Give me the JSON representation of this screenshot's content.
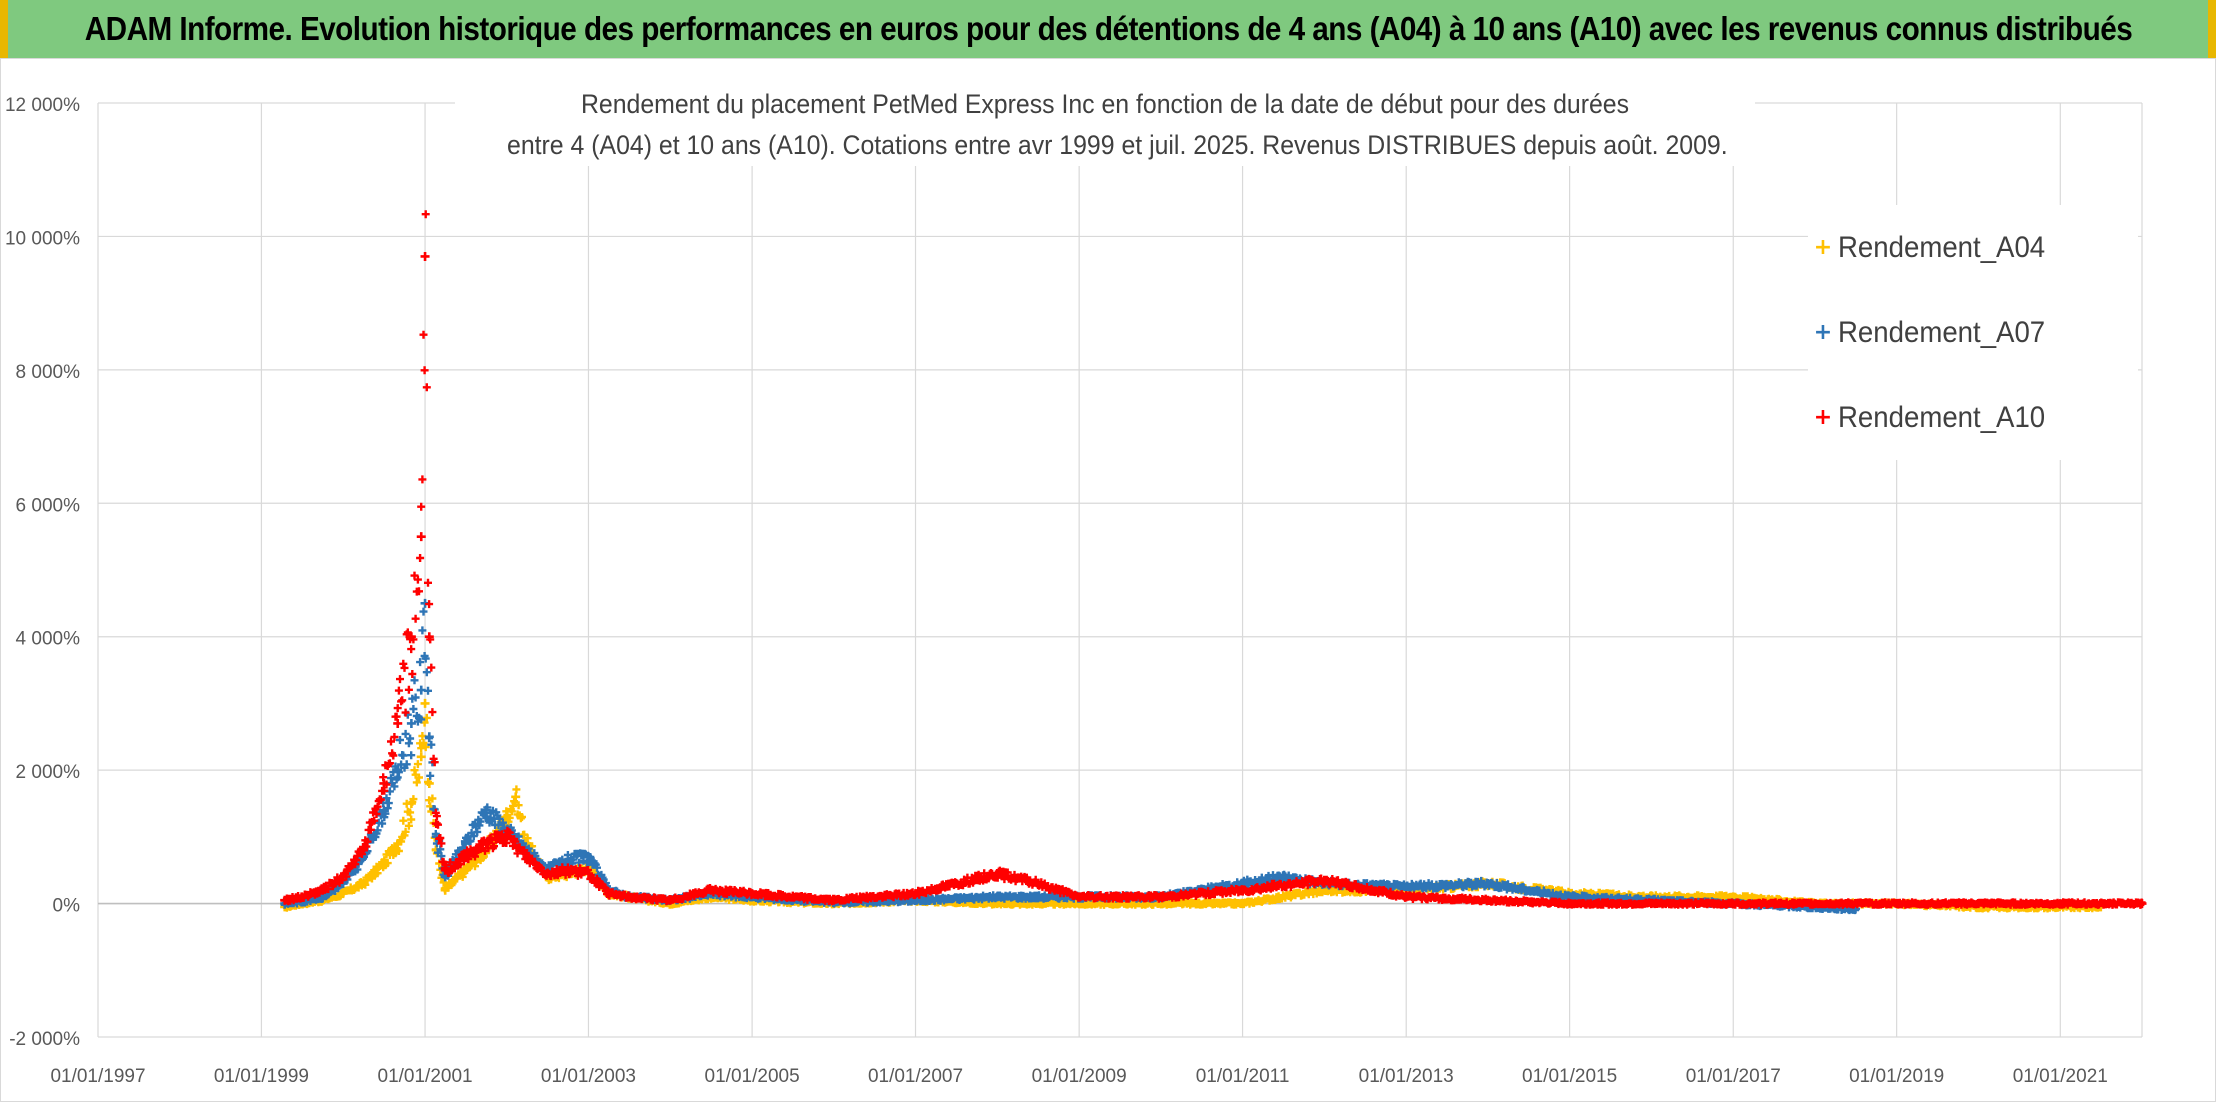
{
  "header": {
    "title": "ADAM Informe. Evolution historique des performances en euros pour des détentions de 4 ans (A04) à 10 ans (A10) avec les revenus connus distribués"
  },
  "colors": {
    "banner": "#7fc97f",
    "accent": "#e8b700",
    "A04": "#ffc000",
    "A07": "#2e75b6",
    "A10": "#ff0000",
    "grid": "#d9d9d9"
  },
  "chart_data": {
    "type": "scatter",
    "title_lines": [
      "Rendement du placement PetMed Express Inc en fonction de la date de début pour des durées",
      "entre 4 (A04) et 10 ans (A10). Cotations entre avr 1999 et juil. 2025. Revenus DISTRIBUES depuis août. 2009."
    ],
    "xlabel": "",
    "ylabel": "",
    "x_ticks": [
      "01/01/1997",
      "01/01/1999",
      "01/01/2001",
      "01/01/2003",
      "01/01/2005",
      "01/01/2007",
      "01/01/2009",
      "01/01/2011",
      "01/01/2013",
      "01/01/2015",
      "01/01/2017",
      "01/01/2019",
      "01/01/2021"
    ],
    "y_ticks": [
      "-2 000%",
      "0%",
      "2 000%",
      "4 000%",
      "6 000%",
      "8 000%",
      "10 000%",
      "12 000%"
    ],
    "xlim": [
      "1997-01-01",
      "2022-01-01"
    ],
    "ylim": [
      -2000,
      12000
    ],
    "grid": true,
    "legend_position": "right",
    "marker": "+",
    "series": [
      {
        "name": "Rendement_A04",
        "color": "#ffc000",
        "x_end": "2021-07-01",
        "points": [
          [
            "1999-04-15",
            -50
          ],
          [
            "1999-07-01",
            0
          ],
          [
            "1999-10-01",
            50
          ],
          [
            "2000-01-01",
            150
          ],
          [
            "2000-04-01",
            300
          ],
          [
            "2000-07-01",
            600
          ],
          [
            "2000-09-01",
            900
          ],
          [
            "2000-11-01",
            1500
          ],
          [
            "2000-12-15",
            2200
          ],
          [
            "2001-01-01",
            3000
          ],
          [
            "2001-01-20",
            1800
          ],
          [
            "2001-02-20",
            800
          ],
          [
            "2001-04-01",
            200
          ],
          [
            "2001-07-01",
            500
          ],
          [
            "2001-10-01",
            800
          ],
          [
            "2002-01-01",
            1300
          ],
          [
            "2002-02-10",
            1600
          ],
          [
            "2002-04-01",
            900
          ],
          [
            "2002-07-01",
            400
          ],
          [
            "2002-10-01",
            450
          ],
          [
            "2003-01-01",
            550
          ],
          [
            "2003-04-01",
            150
          ],
          [
            "2003-07-01",
            100
          ],
          [
            "2004-01-01",
            0
          ],
          [
            "2004-07-01",
            100
          ],
          [
            "2005-01-01",
            50
          ],
          [
            "2006-01-01",
            0
          ],
          [
            "2007-01-01",
            50
          ],
          [
            "2008-01-01",
            0
          ],
          [
            "2009-01-01",
            0
          ],
          [
            "2010-01-01",
            0
          ],
          [
            "2011-01-01",
            0
          ],
          [
            "2012-01-01",
            200
          ],
          [
            "2013-01-01",
            200
          ],
          [
            "2014-01-01",
            300
          ],
          [
            "2015-01-01",
            150
          ],
          [
            "2016-01-01",
            100
          ],
          [
            "2017-01-01",
            100
          ],
          [
            "2018-01-01",
            0
          ],
          [
            "2019-01-01",
            0
          ],
          [
            "2020-01-01",
            -50
          ],
          [
            "2021-07-01",
            -50
          ]
        ]
      },
      {
        "name": "Rendement_A07",
        "color": "#2e75b6",
        "x_end": "2018-07-01",
        "points": [
          [
            "1999-04-15",
            0
          ],
          [
            "1999-07-01",
            30
          ],
          [
            "1999-10-01",
            100
          ],
          [
            "2000-01-01",
            300
          ],
          [
            "2000-04-01",
            700
          ],
          [
            "2000-07-01",
            1400
          ],
          [
            "2000-09-01",
            2000
          ],
          [
            "2000-11-01",
            2700
          ],
          [
            "2000-12-15",
            3200
          ],
          [
            "2001-01-01",
            4500
          ],
          [
            "2001-01-20",
            2500
          ],
          [
            "2001-02-20",
            1000
          ],
          [
            "2001-04-01",
            400
          ],
          [
            "2001-07-01",
            900
          ],
          [
            "2001-10-01",
            1400
          ],
          [
            "2002-01-01",
            1100
          ],
          [
            "2002-04-01",
            800
          ],
          [
            "2002-07-01",
            500
          ],
          [
            "2002-10-01",
            650
          ],
          [
            "2003-01-01",
            700
          ],
          [
            "2003-04-01",
            200
          ],
          [
            "2003-07-01",
            100
          ],
          [
            "2004-01-01",
            50
          ],
          [
            "2004-07-01",
            150
          ],
          [
            "2005-01-01",
            100
          ],
          [
            "2006-01-01",
            20
          ],
          [
            "2007-01-01",
            50
          ],
          [
            "2008-01-01",
            100
          ],
          [
            "2009-01-01",
            100
          ],
          [
            "2010-01-01",
            100
          ],
          [
            "2011-01-01",
            300
          ],
          [
            "2011-07-01",
            400
          ],
          [
            "2012-01-01",
            300
          ],
          [
            "2013-01-01",
            250
          ],
          [
            "2014-01-01",
            300
          ],
          [
            "2015-01-01",
            100
          ],
          [
            "2016-01-01",
            50
          ],
          [
            "2017-01-01",
            0
          ],
          [
            "2018-07-01",
            -80
          ]
        ]
      },
      {
        "name": "Rendement_A10",
        "color": "#ff0000",
        "x_end": "2022-01-01",
        "points": [
          [
            "1999-04-15",
            50
          ],
          [
            "1999-07-01",
            100
          ],
          [
            "1999-10-01",
            200
          ],
          [
            "2000-01-01",
            400
          ],
          [
            "2000-04-01",
            800
          ],
          [
            "2000-07-01",
            1800
          ],
          [
            "2000-09-01",
            2700
          ],
          [
            "2000-11-01",
            4000
          ],
          [
            "2000-12-15",
            5500
          ],
          [
            "2001-01-01",
            9700
          ],
          [
            "2001-01-20",
            4000
          ],
          [
            "2001-02-20",
            1200
          ],
          [
            "2001-04-01",
            500
          ],
          [
            "2001-07-01",
            700
          ],
          [
            "2001-10-01",
            900
          ],
          [
            "2002-01-01",
            1000
          ],
          [
            "2002-04-01",
            700
          ],
          [
            "2002-07-01",
            450
          ],
          [
            "2002-10-01",
            500
          ],
          [
            "2003-01-01",
            450
          ],
          [
            "2003-04-01",
            150
          ],
          [
            "2003-07-01",
            100
          ],
          [
            "2004-01-01",
            50
          ],
          [
            "2004-07-01",
            200
          ],
          [
            "2005-01-01",
            150
          ],
          [
            "2006-01-01",
            50
          ],
          [
            "2007-01-01",
            150
          ],
          [
            "2007-07-01",
            300
          ],
          [
            "2008-01-01",
            450
          ],
          [
            "2008-07-01",
            300
          ],
          [
            "2009-01-01",
            100
          ],
          [
            "2010-01-01",
            100
          ],
          [
            "2011-01-01",
            200
          ],
          [
            "2012-01-01",
            350
          ],
          [
            "2013-01-01",
            100
          ],
          [
            "2014-01-01",
            50
          ],
          [
            "2015-01-01",
            0
          ],
          [
            "2016-01-01",
            0
          ],
          [
            "2017-01-01",
            0
          ],
          [
            "2018-01-01",
            0
          ],
          [
            "2019-01-01",
            0
          ],
          [
            "2020-01-01",
            0
          ],
          [
            "2021-01-01",
            0
          ],
          [
            "2022-01-01",
            0
          ]
        ]
      }
    ]
  }
}
